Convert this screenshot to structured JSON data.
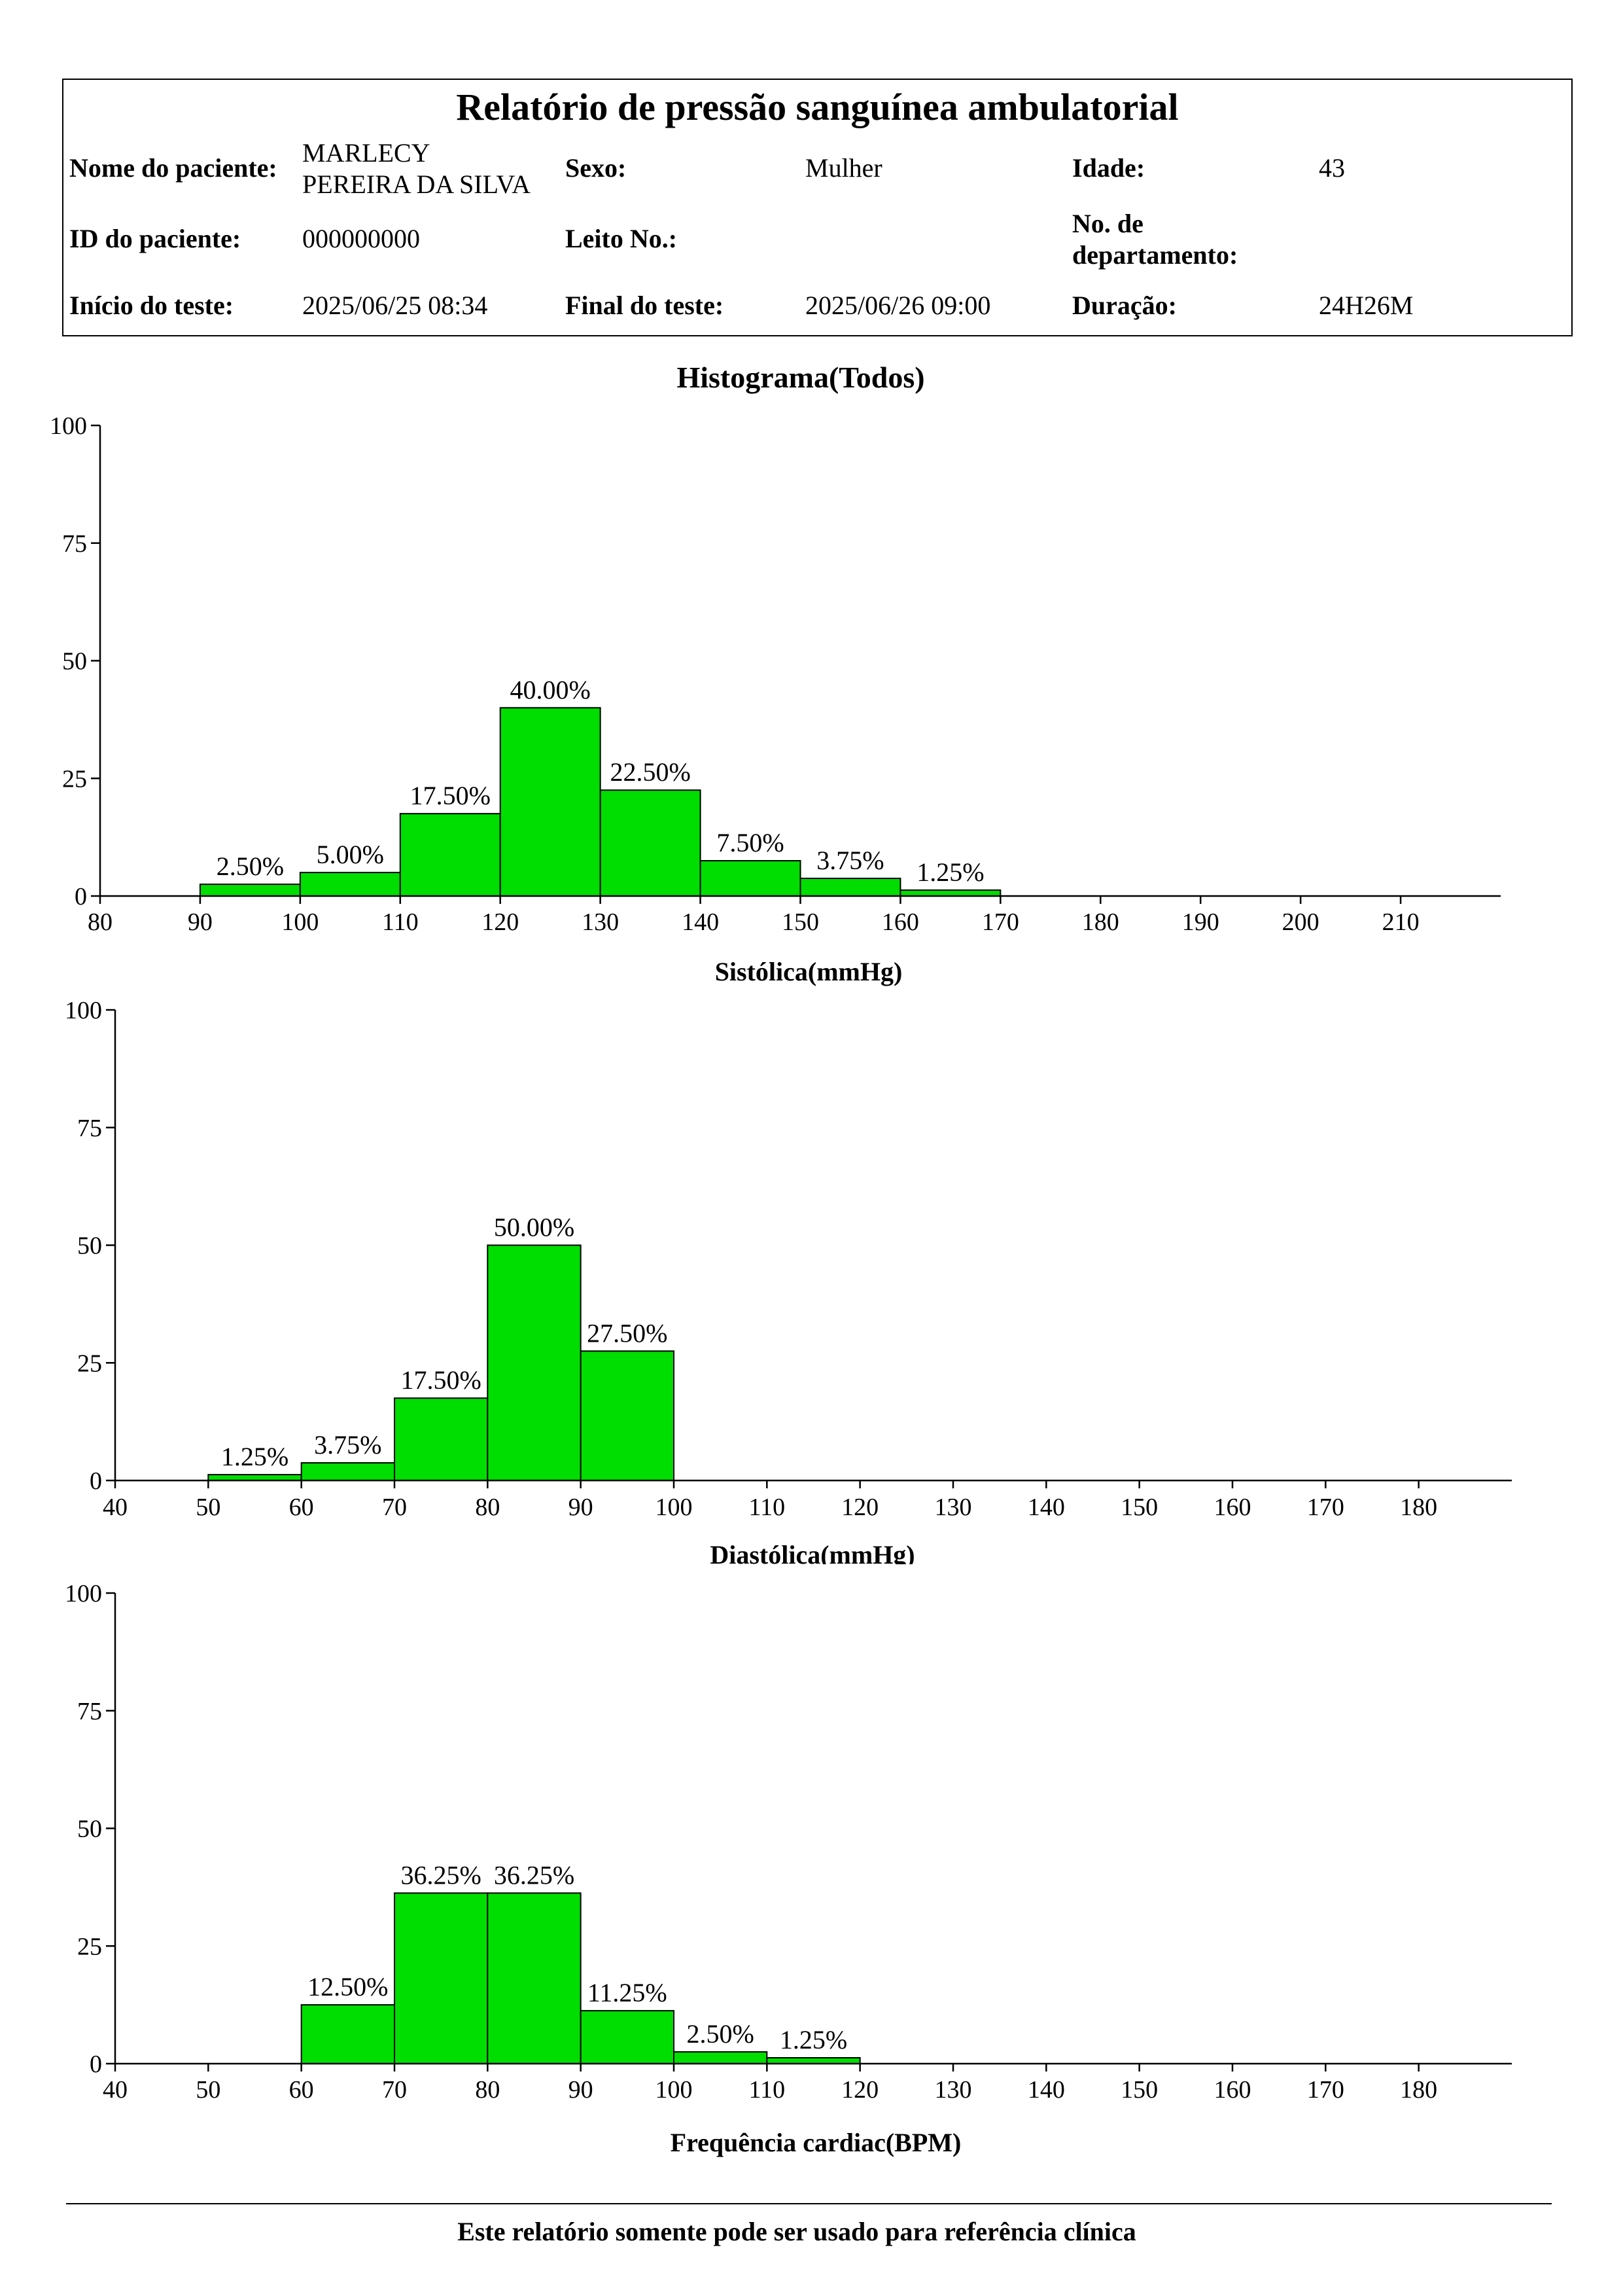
{
  "report": {
    "title": "Relatório de pressão sanguínea ambulatorial",
    "fields": {
      "patient_name_label": "Nome do paciente:",
      "patient_name": "MARLECY PEREIRA DA SILVA",
      "sex_label": "Sexo:",
      "sex": "Mulher",
      "age_label": "Idade:",
      "age": "43",
      "patient_id_label": "ID do paciente:",
      "patient_id": "000000000",
      "bed_label": "Leito No.:",
      "department_label": "No. de departamento:",
      "start_label": "Início do teste:",
      "start": "2025/06/25 08:34",
      "end_label": "Final do teste:",
      "end": "2025/06/26 09:00",
      "duration_label": "Duração:",
      "duration": "24H26M"
    }
  },
  "footer": {
    "note": "Este relatório somente pode ser usado para referência clínica"
  },
  "colors": {
    "bar_fill": "#00DD00",
    "bar_stroke": "#000000"
  },
  "chart_data": [
    {
      "type": "bar",
      "title": "Histograma(Todos)",
      "xlabel": "Sistólica(mmHg)",
      "xlim": [
        80,
        220
      ],
      "ylim": [
        0,
        100
      ],
      "grid": false,
      "x_ticks": [
        80,
        90,
        100,
        110,
        120,
        130,
        140,
        150,
        160,
        170,
        180,
        190,
        200,
        210
      ],
      "y_ticks": [
        0,
        25,
        50,
        75,
        100
      ],
      "bins": [
        [
          90,
          100
        ],
        [
          100,
          110
        ],
        [
          110,
          120
        ],
        [
          120,
          130
        ],
        [
          130,
          140
        ],
        [
          140,
          150
        ],
        [
          150,
          160
        ],
        [
          160,
          170
        ]
      ],
      "values": [
        2.5,
        5,
        17.5,
        40,
        22.5,
        7.5,
        3.75,
        1.25
      ],
      "data_labels": [
        "2.50%",
        "5.00%",
        "17.50%",
        "40.00%",
        "22.50%",
        "7.50%",
        "3.75%",
        "1.25%"
      ]
    },
    {
      "type": "bar",
      "xlabel": "Diastólica(mmHg)",
      "xlim": [
        40,
        190
      ],
      "ylim": [
        0,
        100
      ],
      "grid": false,
      "x_ticks": [
        40,
        50,
        60,
        70,
        80,
        90,
        100,
        110,
        120,
        130,
        140,
        150,
        160,
        170,
        180
      ],
      "y_ticks": [
        0,
        25,
        50,
        75,
        100
      ],
      "bins": [
        [
          50,
          60
        ],
        [
          60,
          70
        ],
        [
          70,
          80
        ],
        [
          80,
          90
        ],
        [
          90,
          100
        ]
      ],
      "values": [
        1.25,
        3.75,
        17.5,
        50,
        27.5
      ],
      "data_labels": [
        "1.25%",
        "3.75%",
        "17.50%",
        "50.00%",
        "27.50%"
      ]
    },
    {
      "type": "bar",
      "xlabel": "Frequência cardiac(BPM)",
      "xlim": [
        40,
        190
      ],
      "ylim": [
        0,
        100
      ],
      "grid": false,
      "x_ticks": [
        40,
        50,
        60,
        70,
        80,
        90,
        100,
        110,
        120,
        130,
        140,
        150,
        160,
        170,
        180
      ],
      "y_ticks": [
        0,
        25,
        50,
        75,
        100
      ],
      "bins": [
        [
          60,
          70
        ],
        [
          70,
          80
        ],
        [
          80,
          90
        ],
        [
          90,
          100
        ],
        [
          100,
          110
        ],
        [
          110,
          120
        ]
      ],
      "values": [
        12.5,
        36.25,
        36.25,
        11.25,
        2.5,
        1.25
      ],
      "data_labels": [
        "12.50%",
        "36.25%",
        "36.25%",
        "11.25%",
        "2.50%",
        "1.25%"
      ]
    }
  ]
}
